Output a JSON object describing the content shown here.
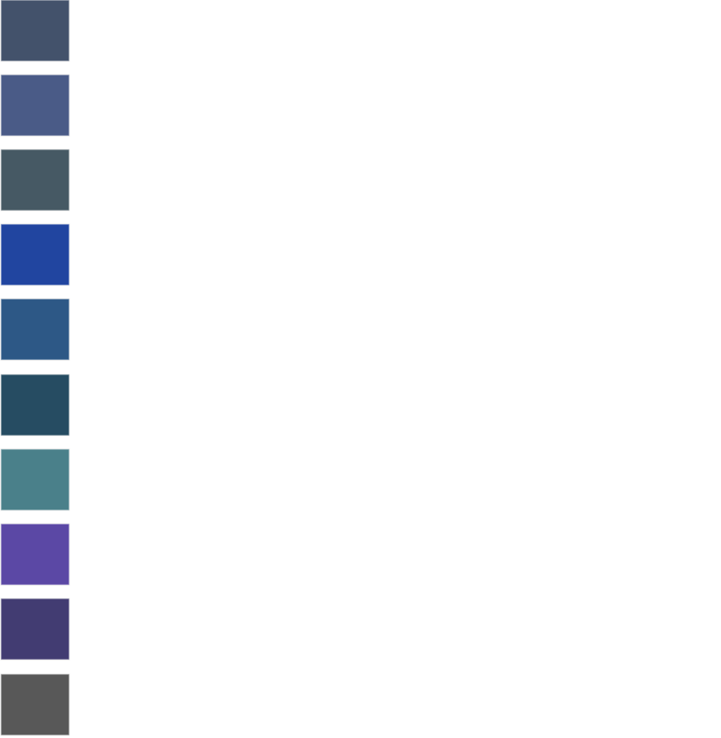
{
  "swatches": [
    {
      "color": "#43526b"
    },
    {
      "color": "#4a5b87"
    },
    {
      "color": "#465964"
    },
    {
      "color": "#2145a0"
    },
    {
      "color": "#2d5886"
    },
    {
      "color": "#264c62"
    },
    {
      "color": "#4a808a"
    },
    {
      "color": "#5b48a5"
    },
    {
      "color": "#423c72"
    },
    {
      "color": "#585858"
    }
  ]
}
